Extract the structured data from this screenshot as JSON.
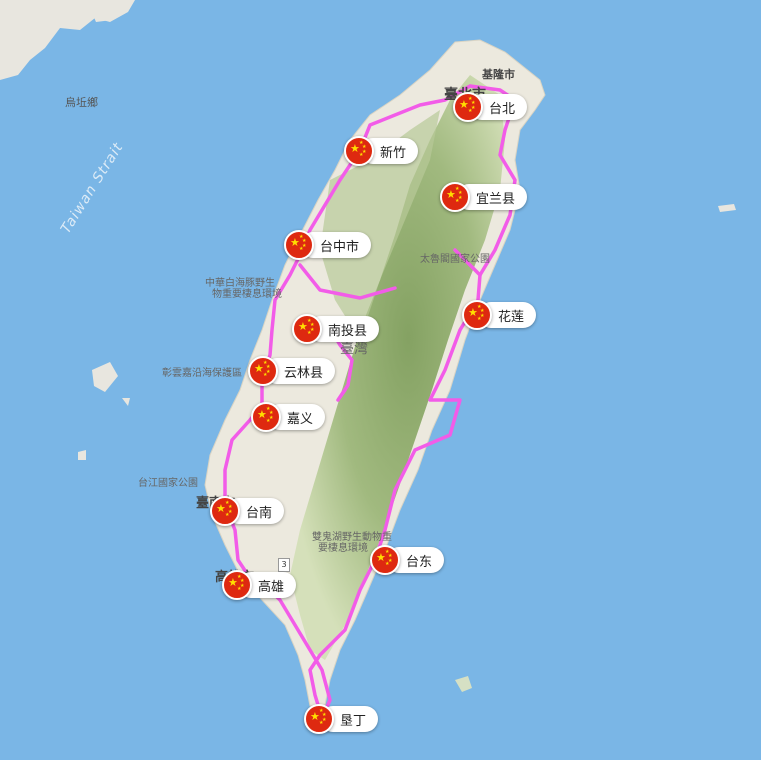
{
  "map": {
    "strait_label": "Taiwan Strait",
    "place_labels": [
      {
        "key": "wuqiu",
        "text": "烏坵鄉"
      },
      {
        "key": "keelung",
        "text": "基隆市"
      },
      {
        "key": "taipei_city",
        "text": "臺北市"
      },
      {
        "key": "taroko",
        "text": "太魯閣國家公園"
      },
      {
        "key": "wetland1",
        "text": "中華白海豚野生"
      },
      {
        "key": "wetland2",
        "text": "物重要棲息環境"
      },
      {
        "key": "taiwan",
        "text": "臺灣"
      },
      {
        "key": "coast",
        "text": "彰雲嘉沿海保護區"
      },
      {
        "key": "taijiang",
        "text": "台江國家公園"
      },
      {
        "key": "tainan_city",
        "text": "臺南市"
      },
      {
        "key": "kaohsiung_city",
        "text": "高雄市"
      },
      {
        "key": "wildlife1",
        "text": "雙鬼湖野生動物重"
      },
      {
        "key": "wildlife2",
        "text": "要棲息環境"
      }
    ],
    "road_shields": [
      {
        "key": "r3",
        "text": "3"
      }
    ],
    "route_color": "#f25ce8",
    "flag_color": "#de2910",
    "flag_star_color": "#ffde00",
    "markers": [
      {
        "label": "台北",
        "icon": "china-flag-icon"
      },
      {
        "label": "新竹",
        "icon": "china-flag-icon"
      },
      {
        "label": "宜兰县",
        "icon": "china-flag-icon"
      },
      {
        "label": "台中市",
        "icon": "china-flag-icon"
      },
      {
        "label": "花莲",
        "icon": "china-flag-icon"
      },
      {
        "label": "南投县",
        "icon": "china-flag-icon"
      },
      {
        "label": "云林县",
        "icon": "china-flag-icon"
      },
      {
        "label": "嘉义",
        "icon": "china-flag-icon"
      },
      {
        "label": "台南",
        "icon": "china-flag-icon"
      },
      {
        "label": "台东",
        "icon": "china-flag-icon"
      },
      {
        "label": "高雄",
        "icon": "china-flag-icon"
      },
      {
        "label": "垦丁",
        "icon": "china-flag-icon"
      }
    ]
  }
}
